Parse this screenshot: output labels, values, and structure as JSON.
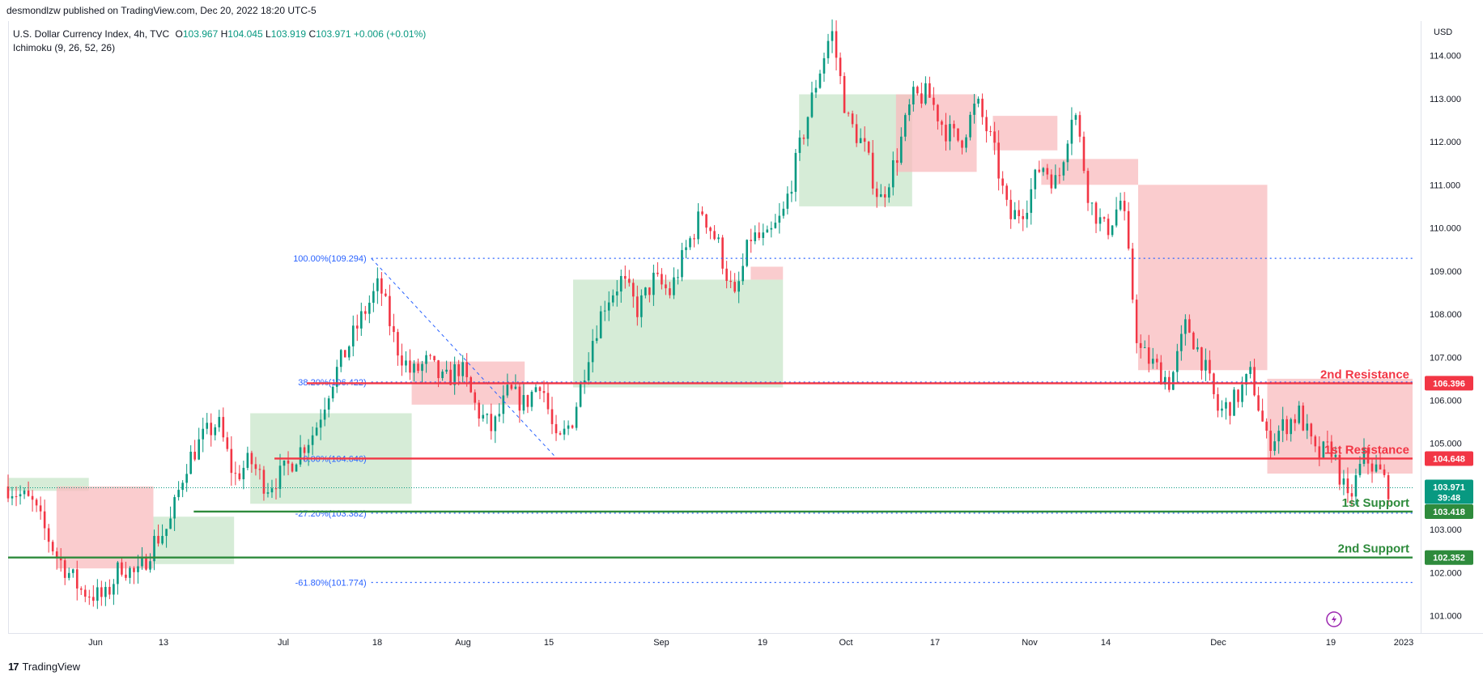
{
  "header": {
    "published_text": "desmondlzw published on TradingView.com, Dec 20, 2022 18:20 UTC-5"
  },
  "legend": {
    "symbol_text": "U.S. Dollar Currency Index, 4h, TVC",
    "open_label": "O",
    "open": "103.967",
    "high_label": "H",
    "high": "104.045",
    "low_label": "L",
    "low": "103.919",
    "close_label": "C",
    "close": "103.971",
    "change": "+0.006 (+0.01%)",
    "indicator": "Ichimoku (9, 26, 52, 26)"
  },
  "footer": {
    "brand": "TradingView",
    "logo_glyph": "17"
  },
  "currency_label": "USD",
  "colors": {
    "up": "#089981",
    "down": "#f23645",
    "resistance": "#f23645",
    "support": "#2e8b3c",
    "fib": "#2962ff",
    "cloud_green": "#c8e6c9",
    "cloud_red": "#f8bbbd"
  },
  "chart_data": {
    "type": "candlestick",
    "title": "U.S. Dollar Currency Index, 4h, TVC",
    "ylim": [
      100.6,
      114.8
    ],
    "y_ticks": [
      "114.000",
      "113.000",
      "112.000",
      "111.000",
      "110.000",
      "109.000",
      "108.000",
      "107.000",
      "106.000",
      "105.000",
      "104.000",
      "103.000",
      "102.000",
      "101.000"
    ],
    "x_tick_labels": [
      "Jun",
      "13",
      "Jul",
      "18",
      "Aug",
      "15",
      "Sep",
      "19",
      "Oct",
      "17",
      "Nov",
      "14",
      "Dec",
      "19",
      "2023"
    ],
    "price_path": [
      {
        "x": 0,
        "y": 104.0
      },
      {
        "x": 3,
        "y": 103.6
      },
      {
        "x": 6,
        "y": 102.4
      },
      {
        "x": 9,
        "y": 101.6
      },
      {
        "x": 12,
        "y": 101.4
      },
      {
        "x": 14,
        "y": 102.2
      },
      {
        "x": 16,
        "y": 101.9
      },
      {
        "x": 18,
        "y": 102.7
      },
      {
        "x": 20,
        "y": 103.1
      },
      {
        "x": 22,
        "y": 104.5
      },
      {
        "x": 24,
        "y": 105.1
      },
      {
        "x": 26,
        "y": 105.5
      },
      {
        "x": 28,
        "y": 104.2
      },
      {
        "x": 30,
        "y": 104.6
      },
      {
        "x": 32,
        "y": 104.0
      },
      {
        "x": 34,
        "y": 104.3
      },
      {
        "x": 36,
        "y": 104.8
      },
      {
        "x": 38,
        "y": 105.3
      },
      {
        "x": 40,
        "y": 106.4
      },
      {
        "x": 42,
        "y": 107.2
      },
      {
        "x": 44,
        "y": 108.0
      },
      {
        "x": 46,
        "y": 108.7
      },
      {
        "x": 48,
        "y": 107.3
      },
      {
        "x": 50,
        "y": 106.6
      },
      {
        "x": 52,
        "y": 106.9
      },
      {
        "x": 54,
        "y": 106.4
      },
      {
        "x": 56,
        "y": 106.8
      },
      {
        "x": 58,
        "y": 105.8
      },
      {
        "x": 60,
        "y": 105.3
      },
      {
        "x": 62,
        "y": 106.2
      },
      {
        "x": 64,
        "y": 105.9
      },
      {
        "x": 66,
        "y": 106.5
      },
      {
        "x": 68,
        "y": 104.9
      },
      {
        "x": 70,
        "y": 105.6
      },
      {
        "x": 72,
        "y": 107.2
      },
      {
        "x": 74,
        "y": 108.3
      },
      {
        "x": 76,
        "y": 108.8
      },
      {
        "x": 78,
        "y": 108.1
      },
      {
        "x": 80,
        "y": 108.8
      },
      {
        "x": 82,
        "y": 108.5
      },
      {
        "x": 84,
        "y": 109.5
      },
      {
        "x": 86,
        "y": 110.4
      },
      {
        "x": 88,
        "y": 109.6
      },
      {
        "x": 90,
        "y": 108.3
      },
      {
        "x": 92,
        "y": 109.8
      },
      {
        "x": 94,
        "y": 109.7
      },
      {
        "x": 96,
        "y": 110.3
      },
      {
        "x": 98,
        "y": 111.8
      },
      {
        "x": 100,
        "y": 113.3
      },
      {
        "x": 102,
        "y": 114.6
      },
      {
        "x": 104,
        "y": 112.5
      },
      {
        "x": 106,
        "y": 111.9
      },
      {
        "x": 108,
        "y": 110.6
      },
      {
        "x": 110,
        "y": 111.6
      },
      {
        "x": 112,
        "y": 113.0
      },
      {
        "x": 114,
        "y": 113.1
      },
      {
        "x": 116,
        "y": 112.3
      },
      {
        "x": 118,
        "y": 112.0
      },
      {
        "x": 120,
        "y": 112.9
      },
      {
        "x": 122,
        "y": 111.9
      },
      {
        "x": 124,
        "y": 110.2
      },
      {
        "x": 126,
        "y": 110.5
      },
      {
        "x": 128,
        "y": 111.5
      },
      {
        "x": 130,
        "y": 111.0
      },
      {
        "x": 132,
        "y": 112.9
      },
      {
        "x": 134,
        "y": 110.6
      },
      {
        "x": 136,
        "y": 109.9
      },
      {
        "x": 138,
        "y": 110.7
      },
      {
        "x": 140,
        "y": 107.2
      },
      {
        "x": 142,
        "y": 106.8
      },
      {
        "x": 144,
        "y": 106.4
      },
      {
        "x": 146,
        "y": 107.8
      },
      {
        "x": 148,
        "y": 106.9
      },
      {
        "x": 150,
        "y": 105.7
      },
      {
        "x": 152,
        "y": 106.0
      },
      {
        "x": 154,
        "y": 106.6
      },
      {
        "x": 156,
        "y": 105.0
      },
      {
        "x": 158,
        "y": 105.4
      },
      {
        "x": 160,
        "y": 105.7
      },
      {
        "x": 162,
        "y": 104.7
      },
      {
        "x": 164,
        "y": 104.9
      },
      {
        "x": 166,
        "y": 103.6
      },
      {
        "x": 168,
        "y": 104.7
      },
      {
        "x": 170,
        "y": 104.3
      },
      {
        "x": 171,
        "y": 103.97
      }
    ],
    "cloud_segments": [
      {
        "color": "green",
        "x0": 0,
        "x1": 10,
        "top": 104.2,
        "bottom": 103.9
      },
      {
        "color": "red",
        "x0": 6,
        "x1": 18,
        "top": 104.0,
        "bottom": 102.1
      },
      {
        "color": "green",
        "x0": 18,
        "x1": 28,
        "top": 103.3,
        "bottom": 102.2
      },
      {
        "color": "green",
        "x0": 30,
        "x1": 50,
        "top": 105.7,
        "bottom": 103.6
      },
      {
        "color": "red",
        "x0": 50,
        "x1": 64,
        "top": 106.9,
        "bottom": 105.9
      },
      {
        "color": "green",
        "x0": 70,
        "x1": 96,
        "top": 108.8,
        "bottom": 106.3
      },
      {
        "color": "red",
        "x0": 92,
        "x1": 96,
        "top": 109.1,
        "bottom": 108.8
      },
      {
        "color": "green",
        "x0": 98,
        "x1": 112,
        "top": 113.1,
        "bottom": 110.5
      },
      {
        "color": "red",
        "x0": 110,
        "x1": 120,
        "top": 113.1,
        "bottom": 111.3
      },
      {
        "color": "red",
        "x0": 122,
        "x1": 130,
        "top": 112.6,
        "bottom": 111.8
      },
      {
        "color": "red",
        "x0": 128,
        "x1": 140,
        "top": 111.6,
        "bottom": 111.0
      },
      {
        "color": "red",
        "x0": 140,
        "x1": 156,
        "top": 111.0,
        "bottom": 106.7
      },
      {
        "color": "red",
        "x0": 156,
        "x1": 174,
        "top": 106.5,
        "bottom": 104.3
      }
    ],
    "x_domain": [
      0,
      174
    ],
    "levels": [
      {
        "name": "2nd Resistance",
        "value": 106.396,
        "value_label": "106.396",
        "role": "resistance",
        "x_start": 37
      },
      {
        "name": "1st Resistance",
        "value": 104.648,
        "value_label": "104.648",
        "role": "resistance",
        "x_start": 33
      },
      {
        "name": "1st Support",
        "value": 103.418,
        "value_label": "103.418",
        "role": "support",
        "x_start": 23
      },
      {
        "name": "2nd Support",
        "value": 102.352,
        "value_label": "102.352",
        "role": "support",
        "x_start": 0
      }
    ],
    "fib_levels": [
      {
        "label": "100.00%(109.294)",
        "value": 109.294
      },
      {
        "label": "38.20%(106.422)",
        "value": 106.422
      },
      {
        "label": "0.00%(104.646)",
        "value": 104.646
      },
      {
        "label": "-27.20%(103.382)",
        "value": 103.382
      },
      {
        "label": "-61.80%(101.774)",
        "value": 101.774
      }
    ],
    "fib_x_start": 45,
    "last_price": {
      "value": 103.971,
      "value_label": "103.971",
      "countdown": "39:48"
    }
  }
}
